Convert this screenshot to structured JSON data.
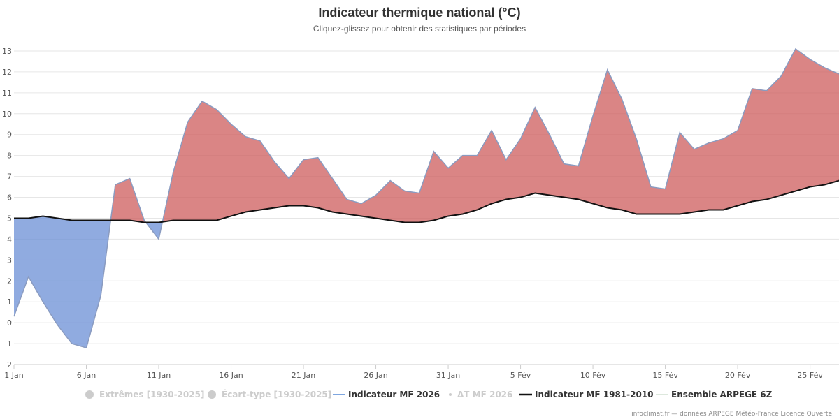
{
  "chart_data": {
    "type": "area",
    "title": "Indicateur thermique national (°C)",
    "subtitle": "Cliquez-glissez pour obtenir des statistiques par périodes",
    "xlabel": "",
    "ylabel": "",
    "ylim": [
      -2,
      13
    ],
    "y_ticks": [
      -2,
      -1,
      0,
      1,
      2,
      3,
      4,
      5,
      6,
      7,
      8,
      9,
      10,
      11,
      12,
      13
    ],
    "x_tick_labels": [
      "1 Jan",
      "6 Jan",
      "11 Jan",
      "16 Jan",
      "21 Jan",
      "26 Jan",
      "31 Jan",
      "5 Fév",
      "10 Fév",
      "15 Fév",
      "20 Fév",
      "25 Fév"
    ],
    "x_tick_days": [
      1,
      6,
      11,
      16,
      21,
      26,
      31,
      36,
      41,
      46,
      51,
      56
    ],
    "grid": true,
    "legend_position": "bottom",
    "colors": {
      "above": "#cd5c5c",
      "below": "#6b8fd6",
      "mf2026_line": "#8a9bc0",
      "normal_line": "#111111"
    },
    "series": [
      {
        "name": "Indicateur MF 2026",
        "values": [
          0.3,
          2.2,
          1.0,
          -0.1,
          -1.0,
          -1.2,
          1.3,
          6.6,
          6.9,
          4.9,
          4.0,
          7.2,
          9.6,
          10.6,
          10.2,
          9.5,
          8.9,
          8.7,
          7.7,
          6.9,
          7.8,
          7.9,
          6.9,
          5.9,
          5.7,
          6.1,
          6.8,
          6.3,
          6.2,
          8.2,
          7.4,
          8.0,
          8.0,
          9.2,
          7.8,
          8.8,
          10.3,
          9.0,
          7.6,
          7.5,
          9.9,
          12.1,
          10.7,
          8.8,
          6.5,
          6.4,
          9.1,
          8.3,
          8.6,
          8.8,
          9.2,
          11.2,
          11.1,
          11.8,
          13.1,
          12.6,
          12.2,
          11.9
        ]
      },
      {
        "name": "Indicateur MF 1981-2010",
        "values": [
          5.0,
          5.0,
          5.1,
          5.0,
          4.9,
          4.9,
          4.9,
          4.9,
          4.9,
          4.8,
          4.8,
          4.9,
          4.9,
          4.9,
          4.9,
          5.1,
          5.3,
          5.4,
          5.5,
          5.6,
          5.6,
          5.5,
          5.3,
          5.2,
          5.1,
          5.0,
          4.9,
          4.8,
          4.8,
          4.9,
          5.1,
          5.2,
          5.4,
          5.7,
          5.9,
          6.0,
          6.2,
          6.1,
          6.0,
          5.9,
          5.7,
          5.5,
          5.4,
          5.2,
          5.2,
          5.2,
          5.2,
          5.3,
          5.4,
          5.4,
          5.6,
          5.8,
          5.9,
          6.1,
          6.3,
          6.5,
          6.6,
          6.8
        ]
      }
    ],
    "legend": [
      {
        "label": "Extrêmes [1930-2025]",
        "active": false,
        "symbol": "circle"
      },
      {
        "label": "Écart-type [1930-2025]",
        "active": false,
        "symbol": "circle"
      },
      {
        "label": "Indicateur MF 2026",
        "active": true,
        "symbol": "line-blue"
      },
      {
        "label": "ΔT MF 2026",
        "active": false,
        "symbol": "dot"
      },
      {
        "label": "Indicateur MF 1981-2010",
        "active": true,
        "symbol": "line-black"
      },
      {
        "label": "Ensemble ARPEGE 6Z",
        "active": true,
        "symbol": "line-pale"
      }
    ],
    "credits": "infoclimat.fr — données ARPEGE Météo-France Licence Ouverte"
  }
}
